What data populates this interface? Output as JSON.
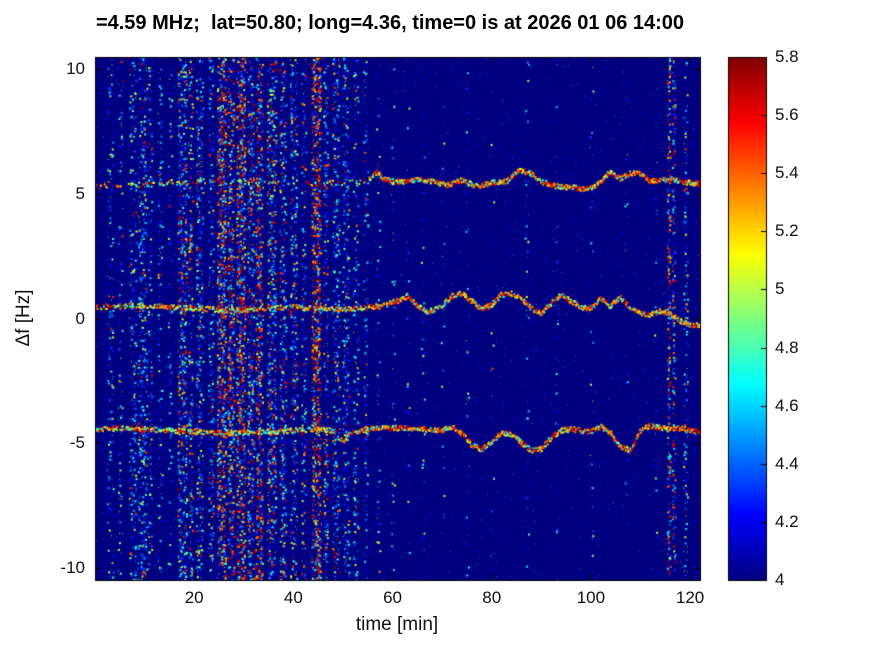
{
  "figure": {
    "title": "=4.59 MHz;  lat=50.80; long=4.36, time=0 is at 2026 01 06 14:00"
  },
  "chart_data": {
    "type": "heatmap",
    "title": "=4.59 MHz;  lat=50.80; long=4.36, time=0 is at 2026 01 06 14:00",
    "xlabel": "time [min]",
    "ylabel": "Δf [Hz]",
    "xlim": [
      0,
      122
    ],
    "ylim": [
      -10.5,
      10.5
    ],
    "xticks": [
      20,
      40,
      60,
      80,
      100,
      120
    ],
    "yticks": [
      10,
      5,
      0,
      -5,
      -10
    ],
    "grid": false,
    "legend": "none",
    "colorbar": {
      "min": 4,
      "max": 5.8,
      "ticks": [
        5.8,
        5.6,
        5.4,
        5.2,
        5,
        4.8,
        4.6,
        4.4,
        4.2,
        4
      ],
      "colormap": "jet",
      "position": "right"
    },
    "background_value": 4.0,
    "noise": {
      "base_density": 0.012,
      "base_vmin": 4.05,
      "base_vmax": 4.5
    },
    "noise_stripes": [
      {
        "t": 3.0,
        "w": 1.2,
        "d": 0.22,
        "hot": 0.04
      },
      {
        "t": 5.0,
        "w": 0.8,
        "d": 0.18,
        "hot": 0.03
      },
      {
        "t": 7.5,
        "w": 1.4,
        "d": 0.32,
        "hot": 0.06
      },
      {
        "t": 9.5,
        "w": 1.8,
        "d": 0.38,
        "hot": 0.08
      },
      {
        "t": 11.0,
        "w": 0.8,
        "d": 0.25,
        "hot": 0.05
      },
      {
        "t": 13.0,
        "w": 0.9,
        "d": 0.22,
        "hot": 0.04
      },
      {
        "t": 15.0,
        "w": 0.8,
        "d": 0.18,
        "hot": 0.03
      },
      {
        "t": 17.5,
        "w": 1.8,
        "d": 0.55,
        "hot": 0.22
      },
      {
        "t": 19.2,
        "w": 0.9,
        "d": 0.45,
        "hot": 0.3
      },
      {
        "t": 21.0,
        "w": 1.4,
        "d": 0.42,
        "hot": 0.12
      },
      {
        "t": 23.3,
        "w": 1.0,
        "d": 0.38,
        "hot": 0.1
      },
      {
        "t": 25.4,
        "w": 1.8,
        "d": 0.75,
        "hot": 0.45
      },
      {
        "t": 27.3,
        "w": 1.3,
        "d": 0.65,
        "hot": 0.4
      },
      {
        "t": 29.3,
        "w": 1.8,
        "d": 0.8,
        "hot": 0.5
      },
      {
        "t": 31.3,
        "w": 1.3,
        "d": 0.55,
        "hot": 0.3
      },
      {
        "t": 33.0,
        "w": 1.4,
        "d": 0.65,
        "hot": 0.42
      },
      {
        "t": 35.5,
        "w": 1.8,
        "d": 0.55,
        "hot": 0.25
      },
      {
        "t": 37.8,
        "w": 1.3,
        "d": 0.45,
        "hot": 0.18
      },
      {
        "t": 40.0,
        "w": 1.4,
        "d": 0.42,
        "hot": 0.15
      },
      {
        "t": 42.0,
        "w": 0.9,
        "d": 0.35,
        "hot": 0.18
      },
      {
        "t": 44.5,
        "w": 1.8,
        "d": 0.8,
        "hot": 0.55
      },
      {
        "t": 46.4,
        "w": 0.9,
        "d": 0.45,
        "hot": 0.2
      },
      {
        "t": 48.5,
        "w": 1.4,
        "d": 0.4,
        "hot": 0.12
      },
      {
        "t": 50.5,
        "w": 1.4,
        "d": 0.35,
        "hot": 0.08
      },
      {
        "t": 52.5,
        "w": 1.0,
        "d": 0.28,
        "hot": 0.06
      },
      {
        "t": 54.5,
        "w": 0.9,
        "d": 0.22,
        "hot": 0.05
      },
      {
        "t": 57.0,
        "w": 0.7,
        "d": 0.12,
        "hot": 0.02
      },
      {
        "t": 60.0,
        "w": 0.7,
        "d": 0.09,
        "hot": 0.02
      },
      {
        "t": 63.0,
        "w": 0.6,
        "d": 0.06,
        "hot": 0.01
      },
      {
        "t": 66.0,
        "w": 0.7,
        "d": 0.07,
        "hot": 0.01
      },
      {
        "t": 70.0,
        "w": 0.6,
        "d": 0.05,
        "hot": 0.01
      },
      {
        "t": 75.0,
        "w": 0.7,
        "d": 0.07,
        "hot": 0.01
      },
      {
        "t": 80.0,
        "w": 0.6,
        "d": 0.05,
        "hot": 0.01
      },
      {
        "t": 87.0,
        "w": 0.7,
        "d": 0.08,
        "hot": 0.02
      },
      {
        "t": 93.0,
        "w": 0.6,
        "d": 0.05,
        "hot": 0.01
      },
      {
        "t": 100.0,
        "w": 0.7,
        "d": 0.06,
        "hot": 0.01
      },
      {
        "t": 107.0,
        "w": 0.6,
        "d": 0.05,
        "hot": 0.01
      },
      {
        "t": 113.0,
        "w": 0.6,
        "d": 0.06,
        "hot": 0.02
      },
      {
        "t": 115.6,
        "w": 0.6,
        "d": 0.65,
        "hot": 0.45
      },
      {
        "t": 116.6,
        "w": 0.6,
        "d": 0.55,
        "hot": 0.35
      },
      {
        "t": 119.0,
        "w": 0.8,
        "d": 0.28,
        "hot": 0.1
      }
    ],
    "traces": [
      {
        "name": "upper-doppler-trace",
        "f_mean": 5.4,
        "segments": [
          {
            "t0": 0,
            "t1": 20,
            "density": 0.3,
            "warm": 0.35
          },
          {
            "t0": 20,
            "t1": 55,
            "density": 0.12,
            "warm": 0.35
          },
          {
            "t0": 55,
            "t1": 122,
            "density": 0.95,
            "warm": 0.6
          }
        ],
        "points": [
          [
            0,
            5.3
          ],
          [
            8,
            5.35
          ],
          [
            14,
            5.45
          ],
          [
            20,
            5.5
          ],
          [
            30,
            5.45
          ],
          [
            40,
            5.4
          ],
          [
            50,
            5.45
          ],
          [
            55,
            5.5
          ],
          [
            56,
            5.75
          ],
          [
            57,
            5.9
          ],
          [
            58,
            5.6
          ],
          [
            60,
            5.5
          ],
          [
            63,
            5.5
          ],
          [
            65,
            5.6
          ],
          [
            68,
            5.5
          ],
          [
            71,
            5.35
          ],
          [
            74,
            5.55
          ],
          [
            77,
            5.3
          ],
          [
            80,
            5.45
          ],
          [
            83,
            5.5
          ],
          [
            85,
            5.85
          ],
          [
            86,
            5.95
          ],
          [
            88,
            5.8
          ],
          [
            90,
            5.5
          ],
          [
            93,
            5.3
          ],
          [
            96,
            5.25
          ],
          [
            99,
            5.2
          ],
          [
            101,
            5.3
          ],
          [
            103,
            5.7
          ],
          [
            104,
            5.9
          ],
          [
            106,
            5.6
          ],
          [
            108,
            5.85
          ],
          [
            110,
            5.8
          ],
          [
            112,
            5.5
          ],
          [
            114,
            5.55
          ],
          [
            116,
            5.6
          ],
          [
            118,
            5.5
          ],
          [
            120,
            5.45
          ],
          [
            122,
            5.4
          ]
        ]
      },
      {
        "name": "middle-doppler-trace",
        "f_mean": 0.4,
        "segments": [
          {
            "t0": 0,
            "t1": 55,
            "density": 0.65,
            "warm": 0.5
          },
          {
            "t0": 55,
            "t1": 122,
            "density": 0.95,
            "warm": 0.6
          }
        ],
        "points": [
          [
            0,
            0.45
          ],
          [
            5,
            0.5
          ],
          [
            10,
            0.5
          ],
          [
            15,
            0.45
          ],
          [
            20,
            0.4
          ],
          [
            25,
            0.35
          ],
          [
            30,
            0.35
          ],
          [
            35,
            0.4
          ],
          [
            40,
            0.45
          ],
          [
            45,
            0.4
          ],
          [
            50,
            0.35
          ],
          [
            55,
            0.45
          ],
          [
            58,
            0.5
          ],
          [
            61,
            0.7
          ],
          [
            63,
            0.9
          ],
          [
            65,
            0.5
          ],
          [
            67,
            0.25
          ],
          [
            70,
            0.5
          ],
          [
            72,
            0.9
          ],
          [
            74,
            1.0
          ],
          [
            76,
            0.7
          ],
          [
            78,
            0.35
          ],
          [
            80,
            0.55
          ],
          [
            82,
            0.95
          ],
          [
            84,
            1.0
          ],
          [
            86,
            0.8
          ],
          [
            88,
            0.4
          ],
          [
            90,
            0.2
          ],
          [
            92,
            0.6
          ],
          [
            94,
            0.95
          ],
          [
            96,
            0.7
          ],
          [
            98,
            0.45
          ],
          [
            100,
            0.4
          ],
          [
            102,
            0.8
          ],
          [
            104,
            0.5
          ],
          [
            106,
            0.85
          ],
          [
            108,
            0.4
          ],
          [
            110,
            0.2
          ],
          [
            112,
            0.15
          ],
          [
            114,
            0.3
          ],
          [
            116,
            0.2
          ],
          [
            118,
            -0.1
          ],
          [
            120,
            -0.25
          ],
          [
            122,
            -0.3
          ]
        ]
      },
      {
        "name": "lower-doppler-trace",
        "f_mean": -4.5,
        "segments": [
          {
            "t0": 0,
            "t1": 55,
            "density": 0.7,
            "warm": 0.5
          },
          {
            "t0": 55,
            "t1": 122,
            "density": 0.95,
            "warm": 0.6
          }
        ],
        "points": [
          [
            0,
            -4.45
          ],
          [
            5,
            -4.4
          ],
          [
            10,
            -4.45
          ],
          [
            15,
            -4.5
          ],
          [
            20,
            -4.55
          ],
          [
            25,
            -4.6
          ],
          [
            30,
            -4.6
          ],
          [
            35,
            -4.55
          ],
          [
            40,
            -4.5
          ],
          [
            45,
            -4.45
          ],
          [
            48,
            -4.5
          ],
          [
            50,
            -4.95
          ],
          [
            51,
            -4.7
          ],
          [
            52,
            -4.55
          ],
          [
            55,
            -4.45
          ],
          [
            58,
            -4.4
          ],
          [
            62,
            -4.4
          ],
          [
            66,
            -4.45
          ],
          [
            70,
            -4.5
          ],
          [
            72,
            -4.35
          ],
          [
            74,
            -4.6
          ],
          [
            76,
            -5.1
          ],
          [
            78,
            -5.25
          ],
          [
            80,
            -5.0
          ],
          [
            82,
            -4.6
          ],
          [
            84,
            -4.65
          ],
          [
            86,
            -5.0
          ],
          [
            88,
            -5.3
          ],
          [
            90,
            -5.25
          ],
          [
            92,
            -4.8
          ],
          [
            94,
            -4.5
          ],
          [
            96,
            -4.45
          ],
          [
            98,
            -4.5
          ],
          [
            100,
            -4.55
          ],
          [
            102,
            -4.35
          ],
          [
            104,
            -4.6
          ],
          [
            106,
            -5.15
          ],
          [
            108,
            -5.3
          ],
          [
            109,
            -4.9
          ],
          [
            110,
            -4.5
          ],
          [
            112,
            -4.3
          ],
          [
            114,
            -4.4
          ],
          [
            116,
            -4.45
          ],
          [
            118,
            -4.4
          ],
          [
            120,
            -4.5
          ],
          [
            122,
            -4.55
          ]
        ]
      }
    ]
  }
}
